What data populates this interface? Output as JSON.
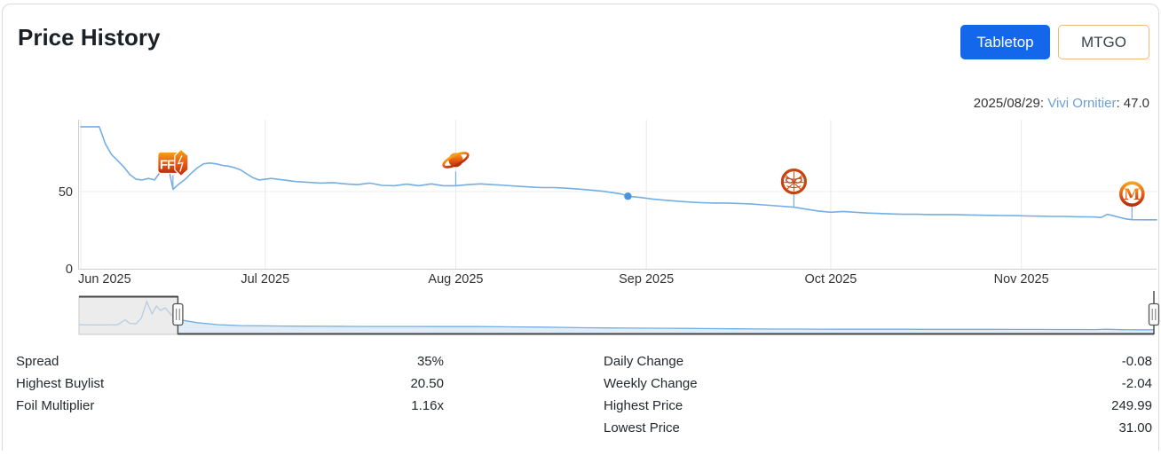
{
  "header": {
    "title": "Price History",
    "buttons": [
      {
        "label": "Tabletop",
        "active": true
      },
      {
        "label": "MTGO",
        "active": false
      }
    ]
  },
  "chart": {
    "hover_label": {
      "date_part": "2025/08/29: ",
      "card_name": "Vivi Ornitier",
      "value_part": ": 47.0"
    }
  },
  "chart_data": {
    "type": "line",
    "title": "Price History",
    "series": [
      {
        "name": "Vivi Ornitier",
        "color": "#74aee3",
        "points": [
          [
            "2025-06-01",
            92
          ],
          [
            "2025-06-02",
            92
          ],
          [
            "2025-06-03",
            92
          ],
          [
            "2025-06-04",
            92
          ],
          [
            "2025-06-05",
            81
          ],
          [
            "2025-06-06",
            74
          ],
          [
            "2025-06-07",
            70
          ],
          [
            "2025-06-08",
            66
          ],
          [
            "2025-06-09",
            61
          ],
          [
            "2025-06-10",
            58
          ],
          [
            "2025-06-11",
            57.5
          ],
          [
            "2025-06-12",
            58.5
          ],
          [
            "2025-06-13",
            57.5
          ],
          [
            "2025-06-14",
            63
          ],
          [
            "2025-06-15",
            71
          ],
          [
            "2025-06-16",
            51.5
          ],
          [
            "2025-06-17",
            55
          ],
          [
            "2025-06-18",
            58
          ],
          [
            "2025-06-19",
            62
          ],
          [
            "2025-06-20",
            65.5
          ],
          [
            "2025-06-21",
            68
          ],
          [
            "2025-06-22",
            68.5
          ],
          [
            "2025-06-23",
            68
          ],
          [
            "2025-06-24",
            67
          ],
          [
            "2025-06-25",
            66.5
          ],
          [
            "2025-06-26",
            65.5
          ],
          [
            "2025-06-27",
            64
          ],
          [
            "2025-06-28",
            61.5
          ],
          [
            "2025-06-29",
            59
          ],
          [
            "2025-06-30",
            57.5
          ],
          [
            "2025-07-02",
            58.5
          ],
          [
            "2025-07-04",
            57.5
          ],
          [
            "2025-07-06",
            56.5
          ],
          [
            "2025-07-08",
            56
          ],
          [
            "2025-07-10",
            55.5
          ],
          [
            "2025-07-12",
            55.8
          ],
          [
            "2025-07-14",
            55
          ],
          [
            "2025-07-16",
            54.5
          ],
          [
            "2025-07-18",
            55.5
          ],
          [
            "2025-07-20",
            54
          ],
          [
            "2025-07-22",
            53.8
          ],
          [
            "2025-07-24",
            54.8
          ],
          [
            "2025-07-26",
            53.8
          ],
          [
            "2025-07-28",
            55
          ],
          [
            "2025-07-30",
            53.8
          ],
          [
            "2025-08-01",
            53.8
          ],
          [
            "2025-08-03",
            54.5
          ],
          [
            "2025-08-05",
            55
          ],
          [
            "2025-08-07",
            54.5
          ],
          [
            "2025-08-09",
            54
          ],
          [
            "2025-08-11",
            53.5
          ],
          [
            "2025-08-13",
            53
          ],
          [
            "2025-08-15",
            52.6
          ],
          [
            "2025-08-17",
            52.6
          ],
          [
            "2025-08-19",
            52.2
          ],
          [
            "2025-08-21",
            51.6
          ],
          [
            "2025-08-23",
            51
          ],
          [
            "2025-08-25",
            50.2
          ],
          [
            "2025-08-27",
            49
          ],
          [
            "2025-08-28",
            48.4
          ],
          [
            "2025-08-29",
            47
          ],
          [
            "2025-08-30",
            46.6
          ],
          [
            "2025-08-31",
            46.2
          ],
          [
            "2025-09-02",
            45.2
          ],
          [
            "2025-09-04",
            44.4
          ],
          [
            "2025-09-06",
            43.8
          ],
          [
            "2025-09-08",
            43.2
          ],
          [
            "2025-09-10",
            42.8
          ],
          [
            "2025-09-12",
            42.6
          ],
          [
            "2025-09-14",
            42.6
          ],
          [
            "2025-09-16",
            42.3
          ],
          [
            "2025-09-18",
            42
          ],
          [
            "2025-09-20",
            41.4
          ],
          [
            "2025-09-22",
            40.8
          ],
          [
            "2025-09-24",
            40.2
          ],
          [
            "2025-09-25",
            39.9
          ],
          [
            "2025-09-27",
            38.6
          ],
          [
            "2025-09-29",
            37.4
          ],
          [
            "2025-10-01",
            36.6
          ],
          [
            "2025-10-03",
            37.1
          ],
          [
            "2025-10-05",
            36.6
          ],
          [
            "2025-10-07",
            36.1
          ],
          [
            "2025-10-09",
            35.8
          ],
          [
            "2025-10-11",
            35.5
          ],
          [
            "2025-10-13",
            35.3
          ],
          [
            "2025-10-15",
            35.3
          ],
          [
            "2025-10-17",
            35.1
          ],
          [
            "2025-10-19",
            35.1
          ],
          [
            "2025-10-21",
            35.1
          ],
          [
            "2025-10-23",
            34.9
          ],
          [
            "2025-10-25",
            34.7
          ],
          [
            "2025-10-27",
            34.6
          ],
          [
            "2025-10-29",
            34.5
          ],
          [
            "2025-10-31",
            34.4
          ],
          [
            "2025-11-02",
            34.2
          ],
          [
            "2025-11-04",
            34.1
          ],
          [
            "2025-11-06",
            33.9
          ],
          [
            "2025-11-08",
            33.9
          ],
          [
            "2025-11-10",
            33.7
          ],
          [
            "2025-11-12",
            33.6
          ],
          [
            "2025-11-13",
            33.5
          ],
          [
            "2025-11-14",
            33.2
          ],
          [
            "2025-11-15",
            35.3
          ],
          [
            "2025-11-16",
            34.3
          ],
          [
            "2025-11-17",
            33.3
          ],
          [
            "2025-11-18",
            32.3
          ],
          [
            "2025-11-19",
            31.8
          ],
          [
            "2025-11-21",
            31.7
          ],
          [
            "2025-11-23",
            31.7
          ]
        ]
      }
    ],
    "x_domain": [
      "2025-06-01",
      "2025-11-23"
    ],
    "y_domain": [
      0,
      96.5
    ],
    "x_ticks": [
      {
        "date": "2025-06-01",
        "label": "Jun 2025"
      },
      {
        "date": "2025-07-01",
        "label": "Jul 2025"
      },
      {
        "date": "2025-08-01",
        "label": "Aug 2025"
      },
      {
        "date": "2025-09-01",
        "label": "Sep 2025"
      },
      {
        "date": "2025-10-01",
        "label": "Oct 2025"
      },
      {
        "date": "2025-11-01",
        "label": "Nov 2025"
      }
    ],
    "y_ticks": [
      {
        "value": 0,
        "label": "0"
      },
      {
        "value": 50,
        "label": "50"
      }
    ],
    "grid": true,
    "legend": false,
    "selected_point": {
      "date": "2025-08-29",
      "value": 47.0
    },
    "set_icons": [
      {
        "name": "final-fantasy-set-icon",
        "date": "2025-06-16",
        "anchor_value": 51.5
      },
      {
        "name": "edge-of-eternities-set-icon",
        "date": "2025-08-01",
        "anchor_value": 53.8
      },
      {
        "name": "spider-man-set-icon",
        "date": "2025-09-25",
        "anchor_value": 39.9
      },
      {
        "name": "m-set-icon",
        "date": "2025-11-19",
        "anchor_value": 31.8
      }
    ],
    "navigator": {
      "selected_start_frac": 0.092,
      "value_max": 260,
      "masked_points": [
        [
          0,
          66
        ],
        [
          0.012,
          64
        ],
        [
          0.024,
          64
        ],
        [
          0.036,
          66
        ],
        [
          0.043,
          100
        ],
        [
          0.047,
          75
        ],
        [
          0.053,
          72
        ],
        [
          0.058,
          110
        ],
        [
          0.063,
          224
        ],
        [
          0.068,
          139
        ],
        [
          0.072,
          193
        ],
        [
          0.076,
          163
        ],
        [
          0.08,
          181
        ],
        [
          0.086,
          133
        ],
        [
          0.092,
          103
        ]
      ],
      "selected_points": [
        [
          0.092,
          103
        ],
        [
          0.1,
          92
        ],
        [
          0.11,
          80
        ],
        [
          0.13,
          66
        ],
        [
          0.15,
          60
        ],
        [
          0.17,
          58
        ],
        [
          0.19,
          57
        ],
        [
          0.21,
          55.5
        ],
        [
          0.23,
          55
        ],
        [
          0.25,
          54.5
        ],
        [
          0.27,
          54
        ],
        [
          0.29,
          53.8
        ],
        [
          0.31,
          54
        ],
        [
          0.33,
          53.2
        ],
        [
          0.35,
          53.5
        ],
        [
          0.37,
          53
        ],
        [
          0.39,
          52.2
        ],
        [
          0.41,
          51
        ],
        [
          0.43,
          49.5
        ],
        [
          0.45,
          47.5
        ],
        [
          0.47,
          45.5
        ],
        [
          0.49,
          44
        ],
        [
          0.51,
          43
        ],
        [
          0.53,
          42.2
        ],
        [
          0.55,
          41.5
        ],
        [
          0.57,
          40.8
        ],
        [
          0.59,
          39.5
        ],
        [
          0.61,
          38
        ],
        [
          0.63,
          37
        ],
        [
          0.65,
          36.4
        ],
        [
          0.67,
          36
        ],
        [
          0.69,
          35.6
        ],
        [
          0.71,
          35.3
        ],
        [
          0.73,
          35.2
        ],
        [
          0.75,
          35
        ],
        [
          0.77,
          34.8
        ],
        [
          0.79,
          34.6
        ],
        [
          0.81,
          34.5
        ],
        [
          0.83,
          34.3
        ],
        [
          0.85,
          34.2
        ],
        [
          0.87,
          34
        ],
        [
          0.89,
          33.8
        ],
        [
          0.91,
          33.5
        ],
        [
          0.93,
          33.2
        ],
        [
          0.945,
          32.8
        ],
        [
          0.955,
          34.8
        ],
        [
          0.97,
          32
        ],
        [
          0.985,
          31.7
        ],
        [
          1,
          31.7
        ]
      ]
    }
  },
  "stats": {
    "left": [
      {
        "label": "Spread",
        "value": "35%"
      },
      {
        "label": "Highest Buylist",
        "value": "20.50"
      },
      {
        "label": "Foil Multiplier",
        "value": "1.16x"
      }
    ],
    "right": [
      {
        "label": "Daily Change",
        "value": "-0.08"
      },
      {
        "label": "Weekly Change",
        "value": "-2.04"
      },
      {
        "label": "Highest Price",
        "value": "249.99"
      },
      {
        "label": "Lowest Price",
        "value": "31.00"
      }
    ]
  },
  "colors": {
    "accent_blue": "#1467eb",
    "line_blue": "#74aee3",
    "dot_blue": "#4b94dd",
    "link_blue": "#6d9ed8",
    "mtgo_border": "#e9bd72",
    "icon_orange": "#e65714",
    "gridline": "#e9e9e9",
    "axis": "#cfcfcf"
  }
}
